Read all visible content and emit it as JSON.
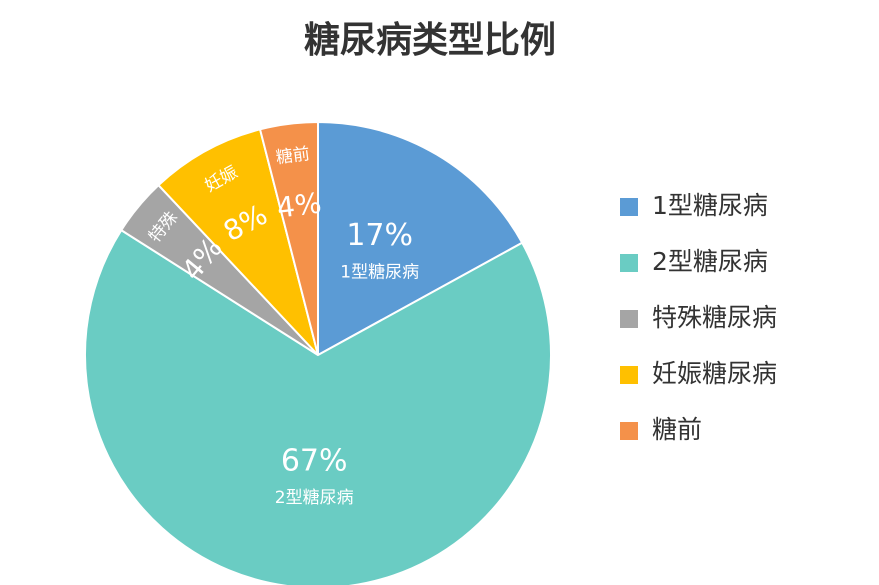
{
  "chart_data": {
    "type": "pie",
    "title": "糖尿病类型比例",
    "categories": [
      "1型糖尿病",
      "2型糖尿病",
      "特殊糖尿病",
      "妊娠糖尿病",
      "糖前"
    ],
    "values": [
      17,
      67,
      4,
      8,
      4
    ],
    "value_labels": [
      "17%",
      "67%",
      "4%",
      "8%",
      "4%"
    ],
    "slice_labels": [
      "1型糖尿病",
      "2型糖尿病",
      "特殊",
      "妊娠",
      "糖前"
    ],
    "colors": [
      "#5b9bd5",
      "#6accc3",
      "#a5a5a5",
      "#ffc000",
      "#f4914a"
    ],
    "legend": "right"
  }
}
